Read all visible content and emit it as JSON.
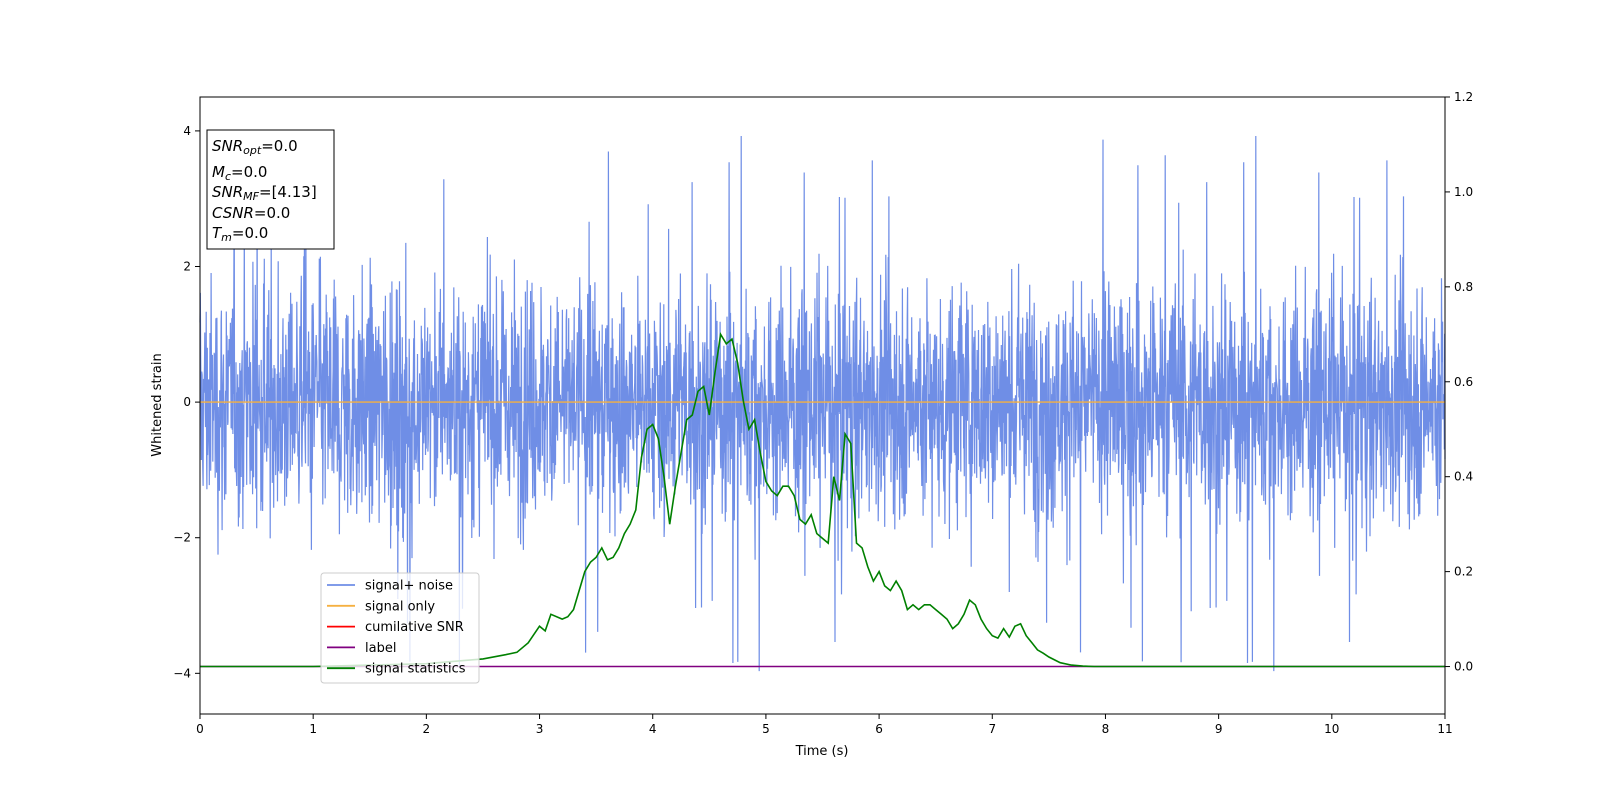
{
  "chart_data": {
    "type": "line",
    "xlabel": "Time (s)",
    "ylabel": "Whitened strain",
    "xlim": [
      0,
      11
    ],
    "ylim_left": [
      -4.6,
      4.5
    ],
    "ylim_right": [
      -0.1,
      1.2
    ],
    "x_ticks": [
      0,
      1,
      2,
      3,
      4,
      5,
      6,
      7,
      8,
      9,
      10,
      11
    ],
    "y_ticks_left": [
      -4,
      -2,
      0,
      2,
      4
    ],
    "y_ticks_right": [
      0.0,
      0.2,
      0.4,
      0.6,
      0.8,
      1.0,
      1.2
    ],
    "grid": false,
    "legend_position": "lower-left",
    "colors": {
      "signal_noise": "#6f8ee6",
      "signal_only": "#f5b041",
      "cumulative_snr": "#ff0000",
      "label": "#800080",
      "signal_statistics": "#008000"
    },
    "series": [
      {
        "name": "signal+ noise",
        "axis": "left",
        "description_values": "whitened noise, roughly Gaussian with amplitude up to about ±4",
        "noise_range": [
          -4.1,
          4.05
        ]
      },
      {
        "name": "signal only",
        "axis": "left",
        "x": [
          0,
          11
        ],
        "values": [
          0,
          0
        ]
      },
      {
        "name": "cumilative SNR",
        "axis": "right",
        "x": [],
        "values": []
      },
      {
        "name": "label",
        "axis": "right",
        "x": [
          0,
          11
        ],
        "values": [
          0,
          0
        ]
      },
      {
        "name": "signal statistics",
        "axis": "right",
        "x": [
          0,
          1.0,
          1.5,
          2.0,
          2.3,
          2.5,
          2.7,
          2.8,
          2.9,
          3.0,
          3.05,
          3.1,
          3.2,
          3.25,
          3.3,
          3.4,
          3.45,
          3.5,
          3.55,
          3.6,
          3.65,
          3.7,
          3.75,
          3.8,
          3.85,
          3.9,
          3.95,
          4.0,
          4.05,
          4.1,
          4.15,
          4.2,
          4.25,
          4.3,
          4.35,
          4.4,
          4.45,
          4.5,
          4.55,
          4.6,
          4.65,
          4.7,
          4.75,
          4.8,
          4.85,
          4.9,
          4.95,
          5.0,
          5.05,
          5.1,
          5.15,
          5.2,
          5.25,
          5.3,
          5.35,
          5.4,
          5.45,
          5.5,
          5.55,
          5.6,
          5.65,
          5.7,
          5.75,
          5.8,
          5.85,
          5.9,
          5.95,
          6.0,
          6.05,
          6.1,
          6.15,
          6.2,
          6.25,
          6.3,
          6.35,
          6.4,
          6.45,
          6.5,
          6.55,
          6.6,
          6.65,
          6.7,
          6.75,
          6.8,
          6.85,
          6.9,
          6.95,
          7.0,
          7.05,
          7.1,
          7.15,
          7.2,
          7.25,
          7.3,
          7.35,
          7.4,
          7.45,
          7.5,
          7.6,
          7.7,
          7.8,
          7.9,
          8.0,
          8.2,
          8.5,
          9.0,
          10.0,
          11.0
        ],
        "values": [
          0.0,
          0.0,
          0.003,
          0.006,
          0.012,
          0.016,
          0.025,
          0.03,
          0.05,
          0.085,
          0.075,
          0.11,
          0.1,
          0.105,
          0.12,
          0.2,
          0.22,
          0.23,
          0.25,
          0.225,
          0.23,
          0.25,
          0.28,
          0.3,
          0.33,
          0.44,
          0.5,
          0.51,
          0.48,
          0.4,
          0.3,
          0.38,
          0.45,
          0.52,
          0.53,
          0.58,
          0.59,
          0.53,
          0.62,
          0.7,
          0.68,
          0.69,
          0.64,
          0.56,
          0.5,
          0.52,
          0.45,
          0.39,
          0.37,
          0.36,
          0.38,
          0.38,
          0.36,
          0.31,
          0.3,
          0.32,
          0.28,
          0.27,
          0.26,
          0.4,
          0.35,
          0.49,
          0.47,
          0.26,
          0.25,
          0.21,
          0.18,
          0.2,
          0.17,
          0.16,
          0.18,
          0.16,
          0.12,
          0.13,
          0.12,
          0.13,
          0.13,
          0.12,
          0.11,
          0.1,
          0.08,
          0.09,
          0.11,
          0.14,
          0.13,
          0.1,
          0.08,
          0.065,
          0.06,
          0.08,
          0.062,
          0.085,
          0.09,
          0.065,
          0.05,
          0.035,
          0.028,
          0.02,
          0.008,
          0.003,
          0.001,
          0.0,
          0.0,
          0.0,
          0.0,
          0.0,
          0.0,
          0.0
        ],
        "noise_seed": 7
      }
    ],
    "annotation_box": {
      "lines": [
        {
          "main": "SNR",
          "sub": "opt",
          "value": "=0.0"
        },
        {
          "main": "M",
          "sub": "c",
          "value": "=0.0"
        },
        {
          "main": "SNR",
          "sub": "MF",
          "value": "=[4.13]"
        },
        {
          "main": "CSNR",
          "sub": "",
          "value": "=0.0"
        },
        {
          "main": "T",
          "sub": "m",
          "value": "=0.0"
        }
      ]
    },
    "legend": [
      {
        "label": "signal+ noise"
      },
      {
        "label": "signal only"
      },
      {
        "label": "cumilative SNR"
      },
      {
        "label": "label"
      },
      {
        "label": "signal statistics"
      }
    ]
  }
}
